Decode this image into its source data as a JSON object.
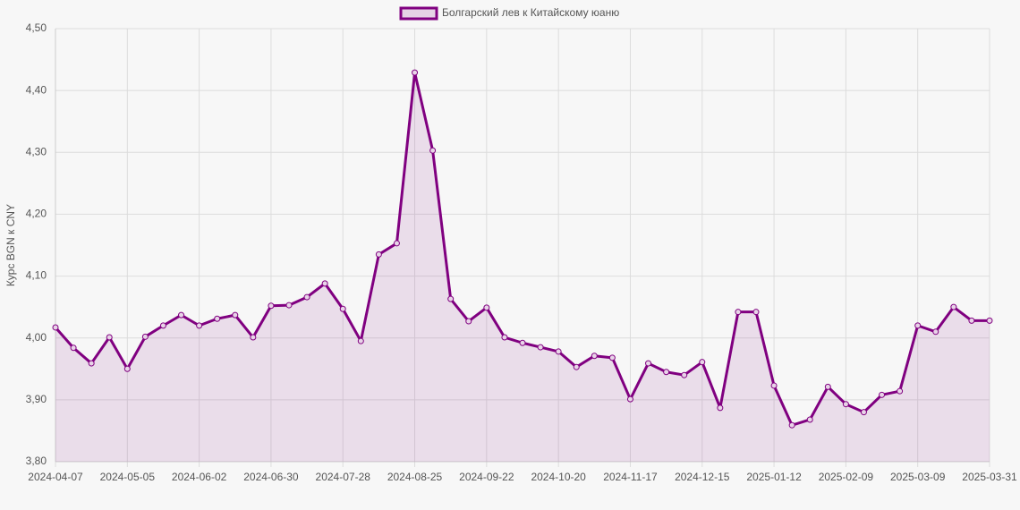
{
  "chart_data": {
    "type": "line",
    "y_label": "Курс BGN к CNY",
    "categories": [
      "2024-04-07",
      null,
      null,
      null,
      "2024-05-05",
      null,
      null,
      null,
      "2024-06-02",
      null,
      null,
      null,
      "2024-06-30",
      null,
      null,
      null,
      "2024-07-28",
      null,
      null,
      null,
      "2024-08-25",
      null,
      null,
      null,
      "2024-09-22",
      null,
      null,
      null,
      "2024-10-20",
      null,
      null,
      null,
      "2024-11-17",
      null,
      null,
      null,
      "2024-12-15",
      null,
      null,
      null,
      "2025-01-12",
      null,
      null,
      null,
      "2025-02-09",
      null,
      null,
      null,
      "2025-03-09",
      null,
      null,
      null,
      "2025-03-31"
    ],
    "series": [
      {
        "name": "Болгарский лев к Китайскому юаню",
        "color": "#800080",
        "values": [
          4.017,
          3.984,
          3.959,
          4.001,
          3.95,
          4.002,
          4.02,
          4.037,
          4.02,
          4.031,
          4.037,
          4.001,
          4.052,
          4.053,
          4.066,
          4.088,
          4.047,
          3.995,
          4.135,
          4.153,
          4.429,
          4.303,
          4.063,
          4.027,
          4.049,
          4.001,
          3.992,
          3.985,
          3.978,
          3.953,
          3.971,
          3.968,
          3.901,
          3.959,
          3.945,
          3.94,
          3.961,
          3.887,
          4.042,
          4.042,
          3.923,
          3.859,
          3.868,
          3.921,
          3.893,
          3.88,
          3.908,
          3.914,
          4.02,
          4.01,
          4.05,
          4.028,
          4.028
        ]
      }
    ],
    "ylim": [
      3.8,
      4.5
    ],
    "yticks": [
      {
        "value": 3.8,
        "label": "3,80"
      },
      {
        "value": 3.9,
        "label": "3,90"
      },
      {
        "value": 4.0,
        "label": "4,00"
      },
      {
        "value": 4.1,
        "label": "4,10"
      },
      {
        "value": 4.2,
        "label": "4,20"
      },
      {
        "value": 4.3,
        "label": "4,30"
      },
      {
        "value": 4.4,
        "label": "4,40"
      },
      {
        "value": 4.5,
        "label": "4,50"
      }
    ],
    "grid": true,
    "fill": true,
    "legend": "top"
  }
}
